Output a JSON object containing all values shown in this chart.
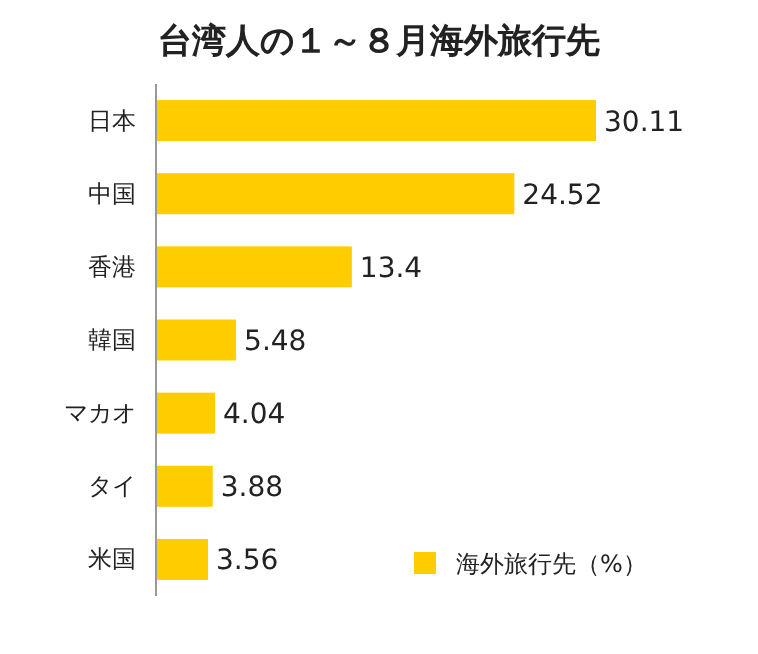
{
  "chart_data": {
    "type": "bar",
    "orientation": "horizontal",
    "title": "台湾人の１～８月海外旅行先",
    "categories": [
      "日本",
      "中国",
      "香港",
      "韓国",
      "マカオ",
      "タイ",
      "米国"
    ],
    "series": [
      {
        "name": "海外旅行先（%）",
        "color": "#ffcc00",
        "values": [
          30.11,
          24.52,
          13.4,
          5.48,
          4.04,
          3.88,
          3.56
        ]
      }
    ],
    "data_labels": true,
    "legend": "bottom right"
  }
}
